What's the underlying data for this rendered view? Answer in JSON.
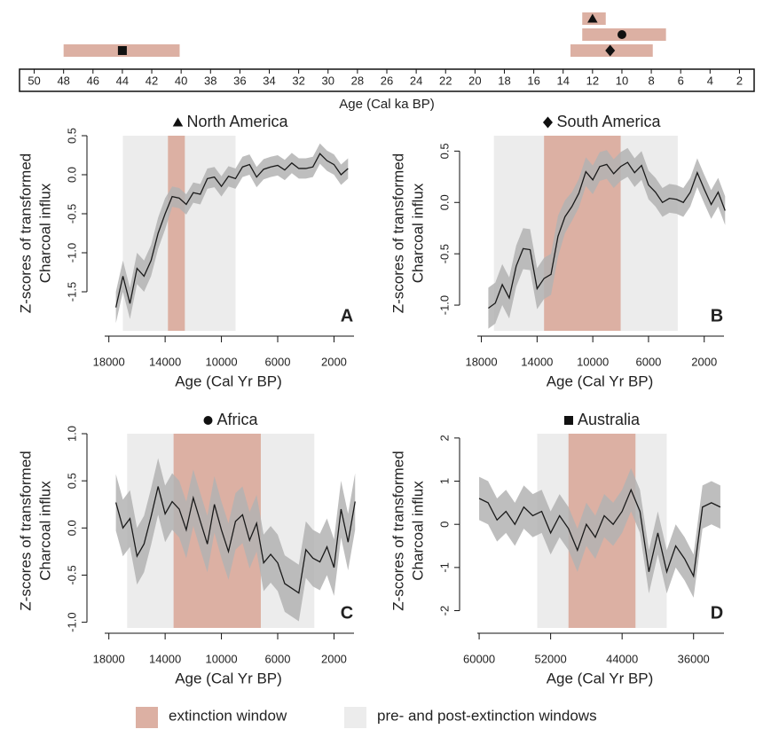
{
  "chart_data": [
    {
      "type": "timeline",
      "xlabel": "Age (Cal ka BP)",
      "xlim": [
        51,
        1
      ],
      "xticks": [
        50,
        48,
        46,
        44,
        42,
        40,
        38,
        36,
        34,
        32,
        30,
        28,
        26,
        24,
        22,
        20,
        18,
        16,
        14,
        12,
        10,
        8,
        6,
        4,
        2
      ],
      "color": "#dcb0a3",
      "windows": [
        {
          "marker": "square",
          "start": 48,
          "end": 40.1,
          "center": 44
        },
        {
          "marker": "triangle",
          "start": 12.7,
          "end": 11.1,
          "center": 12
        },
        {
          "marker": "circle",
          "start": 12.7,
          "end": 7,
          "center": 10
        },
        {
          "marker": "diamond",
          "start": 13.5,
          "end": 7.9,
          "center": 10.8
        }
      ]
    },
    {
      "type": "line",
      "title": "North America",
      "marker": "triangle",
      "panel_label": "A",
      "ylabel": [
        "Z-scores of transformed",
        "Charcoal influx"
      ],
      "xlabel": "Age (Cal Yr BP)",
      "xlim": [
        18800,
        200
      ],
      "xticks": [
        18000,
        14000,
        10000,
        6000,
        2000
      ],
      "ylim": [
        -2.0,
        0.5
      ],
      "yticks": [
        -1.5,
        {
          "value": -1.0,
          "label": "-1.0"
        },
        -0.5,
        {
          "value": 0,
          "label": "0.0"
        },
        0.5
      ],
      "extinction_window": [
        13800,
        12600
      ],
      "pre_post_window": [
        17000,
        9000
      ],
      "x": [
        17500,
        17000,
        16500,
        16000,
        15500,
        15000,
        14500,
        14000,
        13500,
        13000,
        12500,
        12000,
        11500,
        11000,
        10500,
        10000,
        9500,
        9000,
        8500,
        8000,
        7500,
        7000,
        6500,
        6000,
        5500,
        5000,
        4500,
        4000,
        3500,
        3000,
        2500,
        2000,
        1500,
        1000
      ],
      "values": [
        -1.7,
        -1.3,
        -1.65,
        -1.2,
        -1.3,
        -1.1,
        -0.75,
        -0.5,
        -0.28,
        -0.3,
        -0.38,
        -0.23,
        -0.25,
        -0.05,
        -0.03,
        -0.15,
        -0.02,
        -0.05,
        0.1,
        0.13,
        -0.03,
        0.07,
        0.1,
        0.12,
        0.06,
        0.15,
        0.08,
        0.08,
        0.1,
        0.27,
        0.18,
        0.13,
        0.0,
        0.08
      ],
      "lower": [
        -1.9,
        -1.5,
        -1.85,
        -1.4,
        -1.5,
        -1.3,
        -0.95,
        -0.7,
        -0.41,
        -0.43,
        -0.51,
        -0.36,
        -0.38,
        -0.18,
        -0.16,
        -0.28,
        -0.15,
        -0.18,
        -0.03,
        0.0,
        -0.16,
        -0.06,
        -0.03,
        -0.01,
        -0.07,
        0.02,
        -0.05,
        -0.05,
        -0.03,
        0.14,
        0.05,
        0.0,
        -0.13,
        -0.05
      ],
      "upper": [
        -1.5,
        -1.1,
        -1.45,
        -1.0,
        -1.1,
        -0.9,
        -0.55,
        -0.3,
        -0.15,
        -0.17,
        -0.25,
        -0.1,
        -0.12,
        0.08,
        0.1,
        -0.02,
        0.11,
        0.08,
        0.23,
        0.26,
        0.1,
        0.2,
        0.23,
        0.25,
        0.19,
        0.28,
        0.21,
        0.21,
        0.23,
        0.4,
        0.31,
        0.26,
        0.13,
        0.21
      ]
    },
    {
      "type": "line",
      "title": "South America",
      "marker": "diamond",
      "panel_label": "B",
      "ylabel": [
        "Z-scores of transformed",
        "Charcoal influx"
      ],
      "xlabel": "Age (Cal Yr BP)",
      "xlim": [
        18800,
        200
      ],
      "xticks": [
        18000,
        14000,
        10000,
        6000,
        2000
      ],
      "ylim": [
        -1.25,
        0.65
      ],
      "yticks": [
        {
          "value": -1.0,
          "label": "-1.0"
        },
        -0.5,
        {
          "value": 0,
          "label": "0.0"
        },
        0.5
      ],
      "extinction_window": [
        13500,
        8000
      ],
      "pre_post_window": [
        17100,
        3900
      ],
      "x": [
        17500,
        17000,
        16500,
        16000,
        15500,
        15000,
        14500,
        14000,
        13500,
        13000,
        12500,
        12000,
        11500,
        11000,
        10500,
        10000,
        9500,
        9000,
        8500,
        8000,
        7500,
        7000,
        6500,
        6000,
        5500,
        5000,
        4500,
        4000,
        3500,
        3000,
        2500,
        2000,
        1500,
        1000,
        500
      ],
      "values": [
        -1.03,
        -0.98,
        -0.8,
        -0.93,
        -0.62,
        -0.45,
        -0.46,
        -0.84,
        -0.74,
        -0.7,
        -0.33,
        -0.14,
        -0.04,
        0.09,
        0.3,
        0.22,
        0.35,
        0.37,
        0.28,
        0.35,
        0.39,
        0.29,
        0.36,
        0.17,
        0.1,
        0.0,
        0.04,
        0.03,
        0.0,
        0.1,
        0.29,
        0.13,
        -0.02,
        0.1,
        -0.08
      ],
      "lower": [
        -1.23,
        -1.18,
        -1.0,
        -1.13,
        -0.82,
        -0.65,
        -0.66,
        -1.04,
        -0.94,
        -0.9,
        -0.53,
        -0.3,
        -0.18,
        -0.05,
        0.16,
        0.08,
        0.21,
        0.23,
        0.14,
        0.21,
        0.25,
        0.15,
        0.22,
        0.03,
        -0.04,
        -0.14,
        -0.1,
        -0.11,
        -0.14,
        -0.04,
        0.15,
        -0.01,
        -0.16,
        -0.04,
        -0.22
      ],
      "upper": [
        -0.83,
        -0.78,
        -0.6,
        -0.73,
        -0.42,
        -0.25,
        -0.26,
        -0.64,
        -0.54,
        -0.5,
        -0.13,
        0.02,
        0.1,
        0.23,
        0.44,
        0.36,
        0.49,
        0.51,
        0.42,
        0.49,
        0.53,
        0.43,
        0.5,
        0.31,
        0.24,
        0.14,
        0.18,
        0.17,
        0.14,
        0.24,
        0.43,
        0.27,
        0.12,
        0.24,
        0.06
      ]
    },
    {
      "type": "line",
      "title": "Africa",
      "marker": "circle",
      "panel_label": "C",
      "ylabel": [
        "Z-scores of transformed",
        "Charcoal influx"
      ],
      "xlabel": "Age (Cal Yr BP)",
      "xlim": [
        18800,
        200
      ],
      "xticks": [
        18000,
        14000,
        10000,
        6000,
        2000
      ],
      "ylim": [
        -1.06,
        1.0
      ],
      "yticks": [
        {
          "value": -1.0,
          "label": "-1.0"
        },
        -0.5,
        {
          "value": 0,
          "label": "0.0"
        },
        0.5,
        {
          "value": 1.0,
          "label": "1.0"
        }
      ],
      "extinction_window": [
        13400,
        7200
      ],
      "pre_post_window": [
        16700,
        3400
      ],
      "x": [
        17500,
        17000,
        16500,
        16000,
        15500,
        15000,
        14500,
        14000,
        13500,
        13000,
        12500,
        12000,
        11500,
        11000,
        10500,
        10000,
        9500,
        9000,
        8500,
        8000,
        7500,
        7000,
        6500,
        6000,
        5500,
        5000,
        4500,
        4000,
        3500,
        3000,
        2500,
        2000,
        1500,
        1000,
        500
      ],
      "values": [
        0.27,
        0.0,
        0.1,
        -0.3,
        -0.17,
        0.12,
        0.44,
        0.15,
        0.28,
        0.2,
        -0.02,
        0.32,
        0.07,
        -0.17,
        0.25,
        -0.02,
        -0.25,
        0.07,
        0.14,
        -0.13,
        0.05,
        -0.37,
        -0.28,
        -0.37,
        -0.59,
        -0.64,
        -0.69,
        -0.23,
        -0.32,
        -0.36,
        -0.2,
        -0.42,
        0.2,
        -0.15,
        0.28
      ],
      "lower": [
        -0.03,
        -0.3,
        -0.2,
        -0.6,
        -0.47,
        -0.18,
        0.14,
        -0.15,
        -0.02,
        -0.1,
        -0.32,
        0.02,
        -0.23,
        -0.47,
        -0.05,
        -0.32,
        -0.55,
        -0.23,
        -0.16,
        -0.43,
        -0.25,
        -0.67,
        -0.58,
        -0.67,
        -0.89,
        -0.94,
        -0.99,
        -0.53,
        -0.62,
        -0.66,
        -0.5,
        -0.72,
        -0.1,
        -0.45,
        -0.02
      ],
      "upper": [
        0.57,
        0.3,
        0.4,
        0.0,
        0.13,
        0.42,
        0.74,
        0.45,
        0.58,
        0.5,
        0.28,
        0.62,
        0.37,
        0.13,
        0.55,
        0.28,
        0.05,
        0.37,
        0.44,
        0.17,
        0.35,
        -0.07,
        0.02,
        -0.07,
        -0.29,
        -0.34,
        -0.39,
        0.07,
        -0.02,
        -0.06,
        0.1,
        -0.12,
        0.5,
        0.15,
        0.58
      ]
    },
    {
      "type": "line",
      "title": "Australia",
      "marker": "square",
      "panel_label": "D",
      "ylabel": [
        "Z-scores of transformed",
        "Charcoal influx"
      ],
      "xlabel": "Age (Cal Yr BP)",
      "xlim": [
        61000,
        32000
      ],
      "xticks": [
        60000,
        52000,
        44000,
        36000
      ],
      "ylim": [
        -2.4,
        2.1
      ],
      "yticks": [
        -2,
        -1,
        0,
        1,
        2
      ],
      "extinction_window": [
        50000,
        42500
      ],
      "pre_post_window": [
        53500,
        39000
      ],
      "x": [
        60000,
        59000,
        58000,
        57000,
        56000,
        55000,
        54000,
        53000,
        52000,
        51000,
        50000,
        49000,
        48000,
        47000,
        46000,
        45000,
        44000,
        43000,
        42000,
        41000,
        40000,
        39000,
        38000,
        37000,
        36000,
        35000,
        34000,
        33000
      ],
      "values": [
        0.6,
        0.5,
        0.1,
        0.3,
        0.0,
        0.4,
        0.2,
        0.3,
        -0.2,
        0.2,
        -0.1,
        -0.6,
        0.0,
        -0.3,
        0.2,
        0.0,
        0.3,
        0.8,
        0.3,
        -1.1,
        -0.2,
        -1.1,
        -0.5,
        -0.8,
        -1.2,
        0.4,
        0.5,
        0.4
      ],
      "lower": [
        0.1,
        0.0,
        -0.4,
        -0.2,
        -0.5,
        -0.1,
        -0.3,
        -0.2,
        -0.7,
        -0.3,
        -0.6,
        -1.1,
        -0.5,
        -0.8,
        -0.3,
        -0.5,
        -0.2,
        0.3,
        -0.2,
        -1.6,
        -0.7,
        -1.6,
        -1.0,
        -1.3,
        -1.7,
        -0.1,
        0.0,
        -0.1
      ],
      "upper": [
        1.1,
        1.0,
        0.6,
        0.8,
        0.5,
        0.9,
        0.7,
        0.8,
        0.3,
        0.7,
        0.4,
        -0.1,
        0.5,
        0.2,
        0.7,
        0.5,
        0.8,
        1.3,
        0.8,
        -0.6,
        0.3,
        -0.6,
        0.0,
        -0.3,
        -0.7,
        0.9,
        1.0,
        0.9
      ]
    }
  ],
  "style": {
    "line_color": "#1a1a1a",
    "band_color": "#b3b3b3",
    "extinction_color": "#dcb0a3",
    "pre_post_color": "#ececec"
  },
  "legend": [
    {
      "label": "extinction window",
      "color": "#dcb0a3"
    },
    {
      "label": "pre- and post-extinction windows",
      "color": "#ececec"
    }
  ]
}
